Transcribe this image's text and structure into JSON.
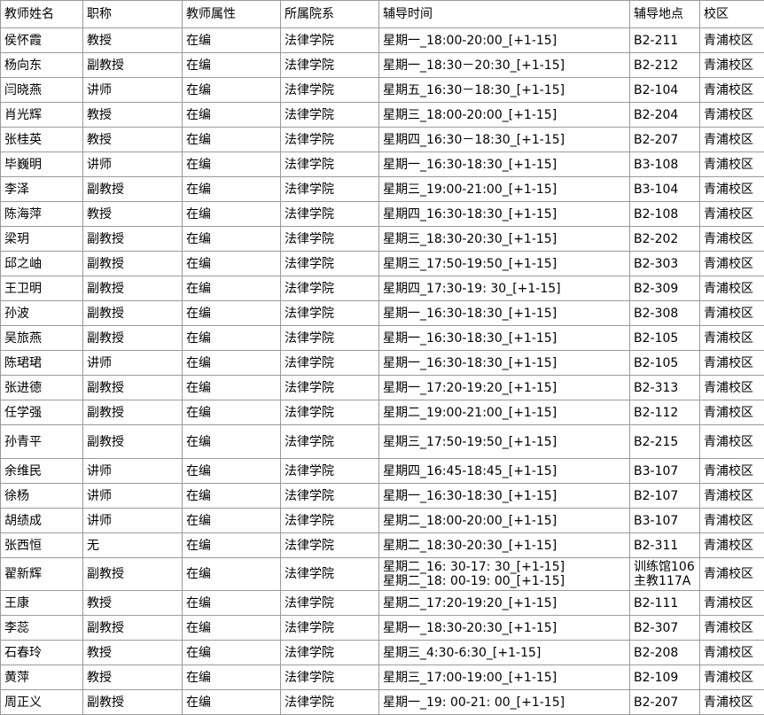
{
  "table": {
    "header": [
      "教师姓名",
      "职称",
      "教师属性",
      "所属院系",
      "辅导时间",
      "辅导地点",
      "校区"
    ],
    "rows": [
      [
        "侯怀霞",
        "教授",
        "在编",
        "法律学院",
        "星期一_18:00-20:00_[+1-15]",
        "B2-211",
        "青浦校区"
      ],
      [
        "杨向东",
        "副教授",
        "在编",
        "法律学院",
        "星期一_18:30－20:30_[+1-15]",
        "B2-212",
        "青浦校区"
      ],
      [
        "闫晓燕",
        "讲师",
        "在编",
        "法律学院",
        "星期五_16:30－18:30_[+1-15]",
        "B2-104",
        "青浦校区"
      ],
      [
        "肖光辉",
        "教授",
        "在编",
        "法律学院",
        "星期三_18:00-20:00_[+1-15]",
        "B2-204",
        "青浦校区"
      ],
      [
        "张桂英",
        "教授",
        "在编",
        "法律学院",
        "星期四_16:30－18:30_[+1-15]",
        "B2-207",
        "青浦校区"
      ],
      [
        "毕巍明",
        "讲师",
        "在编",
        "法律学院",
        "星期一_16:30-18:30_[+1-15]",
        "B3-108",
        "青浦校区"
      ],
      [
        "李泽",
        "副教授",
        "在编",
        "法律学院",
        "星期三_19:00-21:00_[+1-15]",
        "B3-104",
        "青浦校区"
      ],
      [
        "陈海萍",
        "教授",
        "在编",
        "法律学院",
        "星期四_16:30-18:30_[+1-15]",
        "B2-108",
        "青浦校区"
      ],
      [
        "梁玥",
        "副教授",
        "在编",
        "法律学院",
        "星期三_18:30-20:30_[+1-15]",
        "B2-202",
        "青浦校区"
      ],
      [
        "邱之岫",
        "副教授",
        "在编",
        "法律学院",
        "星期三_17:50-19:50_[+1-15]",
        "B2-303",
        "青浦校区"
      ],
      [
        "王卫明",
        "副教授",
        "在编",
        "法律学院",
        "星期四_17:30-19: 30_[+1-15]",
        "B2-309",
        "青浦校区"
      ],
      [
        "孙波",
        "副教授",
        "在编",
        "法律学院",
        "星期一_16:30-18:30_[+1-15]",
        "B2-308",
        "青浦校区"
      ],
      [
        "吴旅燕",
        "副教授",
        "在编",
        "法律学院",
        "星期一_16:30-18:30_[+1-15]",
        "B2-105",
        "青浦校区"
      ],
      [
        "陈珺珺",
        "讲师",
        "在编",
        "法律学院",
        "星期一_16:30-18:30_[+1-15]",
        "B2-105",
        "青浦校区"
      ],
      [
        "张进德",
        "副教授",
        "在编",
        "法律学院",
        "星期一_17:20-19:20_[+1-15]",
        "B2-313",
        "青浦校区"
      ],
      [
        "任学强",
        "副教授",
        "在编",
        "法律学院",
        "星期二_19:00-21:00_[+1-15]",
        "B2-112",
        "青浦校区"
      ],
      [
        "孙青平",
        "副教授",
        "在编",
        "法律学院",
        "星期三_17:50-19:50_[+1-15]",
        "B2-215",
        "青浦校区"
      ],
      [
        "余维民",
        "讲师",
        "在编",
        "法律学院",
        "星期四_16:45-18:45_[+1-15]",
        "B3-107",
        "青浦校区"
      ],
      [
        "徐杨",
        "讲师",
        "在编",
        "法律学院",
        "星期一_16:30-18:30_[+1-15]",
        "B2-107",
        "青浦校区"
      ],
      [
        "胡绩成",
        "讲师",
        "在编",
        "法律学院",
        "星期二_18:00-20:00_[+1-15]",
        "B3-107",
        "青浦校区"
      ],
      [
        "张西恒",
        "无",
        "在编",
        "法律学院",
        "星期二_18:30-20:30_[+1-15]",
        "B2-311",
        "青浦校区"
      ],
      [
        "翟新辉",
        "副教授",
        "在编",
        "法律学院",
        [
          "星期二_16: 30-17: 30_[+1-15]",
          "星期二_18: 00-19: 00_[+1-15]"
        ],
        [
          "训练馆106",
          "主教117A"
        ],
        "青浦校区"
      ],
      [
        "王康",
        "教授",
        "在编",
        "法律学院",
        "星期二_17:20-19:20_[+1-15]",
        "B2-111",
        "青浦校区"
      ],
      [
        "李蕊",
        "副教授",
        "在编",
        "法律学院",
        "星期一_18:30-20:30_[+1-15]",
        "B2-307",
        "青浦校区"
      ],
      [
        "石春玲",
        "教授",
        "在编",
        "法律学院",
        "星期三_4:30-6:30_[+1-15]",
        "B2-208",
        "青浦校区"
      ],
      [
        "黄萍",
        "教授",
        "在编",
        "法律学院",
        "星期三_17:00-19:00_[+1-15]",
        "B2-109",
        "青浦校区"
      ],
      [
        "周正义",
        "副教授",
        "在编",
        "法律学院",
        "星期一_19: 00-21: 00_[+1-15]",
        "B2-207",
        "青浦校区"
      ]
    ]
  }
}
